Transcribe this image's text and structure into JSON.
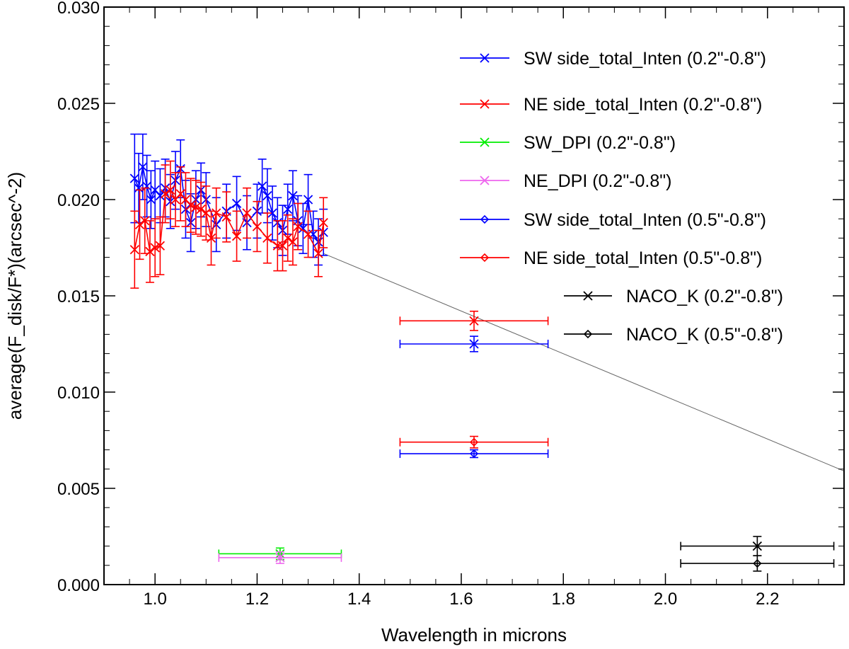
{
  "chart_data": {
    "type": "scatter",
    "title": "",
    "xlabel": "Wavelength in microns",
    "ylabel": "average(F_disk/F*)(arcsec^-2)",
    "xlim": [
      0.9,
      2.35
    ],
    "ylim": [
      0.0,
      0.03
    ],
    "x_ticks": [
      1.0,
      1.2,
      1.4,
      1.6,
      1.8,
      2.0,
      2.2
    ],
    "x_tick_labels": [
      "1.0",
      "1.2",
      "1.4",
      "1.6",
      "1.8",
      "2.0",
      "2.2"
    ],
    "y_ticks": [
      0.0,
      0.005,
      0.01,
      0.015,
      0.02,
      0.025,
      0.03
    ],
    "y_tick_labels": [
      "0.000",
      "0.005",
      "0.010",
      "0.015",
      "0.020",
      "0.025",
      "0.030"
    ],
    "grid": false,
    "legend_position": "top-right",
    "trend_line": {
      "x": [
        1.33,
        2.35
      ],
      "y": [
        0.0172,
        0.0059
      ],
      "color": "#666666"
    },
    "series": [
      {
        "name": "SW side_total_Inten (0.2\"-0.8\")",
        "color": "#0000ff",
        "marker": "x",
        "points": [
          {
            "x": 0.96,
            "y": 0.0211,
            "yerr": 0.0023
          },
          {
            "x": 0.968,
            "y": 0.0206,
            "yerr": 0.0018
          },
          {
            "x": 0.976,
            "y": 0.0217,
            "yerr": 0.0017
          },
          {
            "x": 0.984,
            "y": 0.0207,
            "yerr": 0.0016
          },
          {
            "x": 0.992,
            "y": 0.02,
            "yerr": 0.0015
          },
          {
            "x": 1.0,
            "y": 0.0205,
            "yerr": 0.0015
          },
          {
            "x": 1.01,
            "y": 0.0202,
            "yerr": 0.0014
          },
          {
            "x": 1.02,
            "y": 0.0206,
            "yerr": 0.0015
          },
          {
            "x": 1.03,
            "y": 0.0199,
            "yerr": 0.0014
          },
          {
            "x": 1.04,
            "y": 0.021,
            "yerr": 0.0015
          },
          {
            "x": 1.05,
            "y": 0.0216,
            "yerr": 0.0015
          },
          {
            "x": 1.06,
            "y": 0.0195,
            "yerr": 0.0015
          },
          {
            "x": 1.07,
            "y": 0.0188,
            "yerr": 0.0015
          },
          {
            "x": 1.08,
            "y": 0.02,
            "yerr": 0.0015
          },
          {
            "x": 1.09,
            "y": 0.0205,
            "yerr": 0.0014
          },
          {
            "x": 1.1,
            "y": 0.02,
            "yerr": 0.0014
          },
          {
            "x": 1.12,
            "y": 0.0187,
            "yerr": 0.0014
          },
          {
            "x": 1.14,
            "y": 0.0194,
            "yerr": 0.0014
          },
          {
            "x": 1.16,
            "y": 0.0198,
            "yerr": 0.0014
          },
          {
            "x": 1.18,
            "y": 0.0188,
            "yerr": 0.0014
          },
          {
            "x": 1.2,
            "y": 0.0194,
            "yerr": 0.0014
          },
          {
            "x": 1.21,
            "y": 0.0207,
            "yerr": 0.0014
          },
          {
            "x": 1.22,
            "y": 0.0202,
            "yerr": 0.0014
          },
          {
            "x": 1.23,
            "y": 0.0193,
            "yerr": 0.0014
          },
          {
            "x": 1.24,
            "y": 0.0188,
            "yerr": 0.0013
          },
          {
            "x": 1.25,
            "y": 0.0184,
            "yerr": 0.0013
          },
          {
            "x": 1.26,
            "y": 0.0195,
            "yerr": 0.0013
          },
          {
            "x": 1.27,
            "y": 0.0202,
            "yerr": 0.0013
          },
          {
            "x": 1.28,
            "y": 0.0189,
            "yerr": 0.0013
          },
          {
            "x": 1.29,
            "y": 0.0185,
            "yerr": 0.0013
          },
          {
            "x": 1.3,
            "y": 0.02,
            "yerr": 0.0013
          },
          {
            "x": 1.31,
            "y": 0.0182,
            "yerr": 0.0012
          },
          {
            "x": 1.32,
            "y": 0.0178,
            "yerr": 0.0012
          },
          {
            "x": 1.33,
            "y": 0.0183,
            "yerr": 0.0012
          },
          {
            "x": 1.625,
            "y": 0.0125,
            "yerr": 0.0004,
            "xerr_low": 1.48,
            "xerr_high": 1.77
          }
        ]
      },
      {
        "name": "NE side_total_Inten (0.2\"-0.8\")",
        "color": "#ff0000",
        "marker": "x",
        "points": [
          {
            "x": 0.96,
            "y": 0.0174,
            "yerr": 0.002
          },
          {
            "x": 0.97,
            "y": 0.0187,
            "yerr": 0.0018
          },
          {
            "x": 0.98,
            "y": 0.0189,
            "yerr": 0.0017
          },
          {
            "x": 0.99,
            "y": 0.0173,
            "yerr": 0.0016
          },
          {
            "x": 1.0,
            "y": 0.0175,
            "yerr": 0.0015
          },
          {
            "x": 1.01,
            "y": 0.0176,
            "yerr": 0.0015
          },
          {
            "x": 1.02,
            "y": 0.0203,
            "yerr": 0.0015
          },
          {
            "x": 1.03,
            "y": 0.0205,
            "yerr": 0.0015
          },
          {
            "x": 1.04,
            "y": 0.02,
            "yerr": 0.0014
          },
          {
            "x": 1.05,
            "y": 0.0203,
            "yerr": 0.0014
          },
          {
            "x": 1.06,
            "y": 0.02,
            "yerr": 0.0014
          },
          {
            "x": 1.07,
            "y": 0.0197,
            "yerr": 0.0014
          },
          {
            "x": 1.08,
            "y": 0.0196,
            "yerr": 0.0014
          },
          {
            "x": 1.09,
            "y": 0.0195,
            "yerr": 0.0014
          },
          {
            "x": 1.1,
            "y": 0.0193,
            "yerr": 0.0014
          },
          {
            "x": 1.11,
            "y": 0.018,
            "yerr": 0.0014
          },
          {
            "x": 1.12,
            "y": 0.0193,
            "yerr": 0.0013
          },
          {
            "x": 1.14,
            "y": 0.0191,
            "yerr": 0.0013
          },
          {
            "x": 1.16,
            "y": 0.0181,
            "yerr": 0.0013
          },
          {
            "x": 1.18,
            "y": 0.0193,
            "yerr": 0.0013
          },
          {
            "x": 1.2,
            "y": 0.0186,
            "yerr": 0.0013
          },
          {
            "x": 1.22,
            "y": 0.018,
            "yerr": 0.0013
          },
          {
            "x": 1.24,
            "y": 0.0176,
            "yerr": 0.0013
          },
          {
            "x": 1.25,
            "y": 0.0176,
            "yerr": 0.0013
          },
          {
            "x": 1.26,
            "y": 0.018,
            "yerr": 0.0012
          },
          {
            "x": 1.27,
            "y": 0.0178,
            "yerr": 0.0012
          },
          {
            "x": 1.28,
            "y": 0.0186,
            "yerr": 0.0012
          },
          {
            "x": 1.3,
            "y": 0.0182,
            "yerr": 0.0012
          },
          {
            "x": 1.32,
            "y": 0.0172,
            "yerr": 0.0012
          },
          {
            "x": 1.33,
            "y": 0.0188,
            "yerr": 0.0013
          },
          {
            "x": 1.625,
            "y": 0.0137,
            "yerr": 0.0005,
            "xerr_low": 1.48,
            "xerr_high": 1.77
          }
        ]
      },
      {
        "name": "SW_DPI (0.2\"-0.8\")",
        "color": "#00ee00",
        "marker": "x",
        "points": [
          {
            "x": 1.245,
            "y": 0.0016,
            "yerr": 0.0003,
            "xerr_low": 1.125,
            "xerr_high": 1.365
          }
        ]
      },
      {
        "name": "NE_DPI (0.2\"-0.8\")",
        "color": "#ee66ee",
        "marker": "x",
        "points": [
          {
            "x": 1.245,
            "y": 0.0014,
            "yerr": 0.0003,
            "xerr_low": 1.125,
            "xerr_high": 1.365
          }
        ]
      },
      {
        "name": "SW side_total_Inten (0.5\"-0.8\")",
        "color": "#0000ff",
        "marker": "diamond",
        "points": [
          {
            "x": 1.625,
            "y": 0.0068,
            "yerr": 0.0002,
            "xerr_low": 1.48,
            "xerr_high": 1.77
          }
        ]
      },
      {
        "name": "NE side_total_Inten (0.5\"-0.8\")",
        "color": "#ff0000",
        "marker": "diamond",
        "points": [
          {
            "x": 1.625,
            "y": 0.0074,
            "yerr": 0.0003,
            "xerr_low": 1.48,
            "xerr_high": 1.77
          }
        ]
      },
      {
        "name": "NACO_K (0.2\"-0.8\")",
        "color": "#000000",
        "marker": "x",
        "points": [
          {
            "x": 2.18,
            "y": 0.002,
            "yerr": 0.0005,
            "xerr_low": 2.03,
            "xerr_high": 2.33
          }
        ]
      },
      {
        "name": "NACO_K (0.5\"-0.8\")",
        "color": "#000000",
        "marker": "diamond",
        "points": [
          {
            "x": 2.18,
            "y": 0.0011,
            "yerr": 0.0004,
            "xerr_low": 2.03,
            "xerr_high": 2.33
          }
        ]
      }
    ]
  }
}
